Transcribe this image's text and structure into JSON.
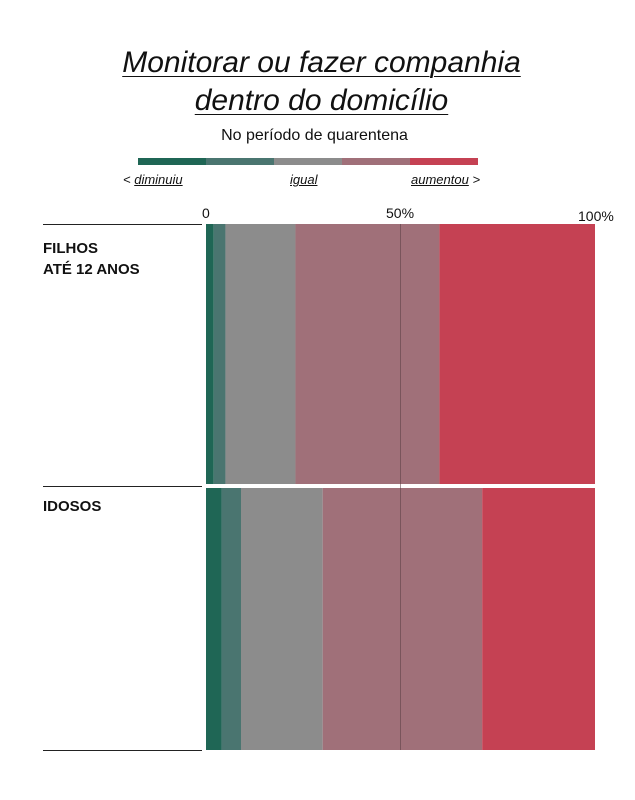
{
  "chart_data": {
    "type": "bar",
    "stacked": "100%",
    "orientation": "horizontal",
    "title": "Monitorar ou fazer companhia dentro do domicílio",
    "title_lines": [
      "Monitorar ou fazer companhia",
      "dentro do domicílio"
    ],
    "subtitle": "No período de quarentena",
    "legend": {
      "placement": "top",
      "left_label": "diminuiu",
      "middle_label": "igual",
      "right_label": "aumentou",
      "left_arrow": "<",
      "right_arrow": ">"
    },
    "x_ticks": [
      "0",
      "50%",
      "100%"
    ],
    "xlim": [
      0,
      100
    ],
    "categories": [
      "FILHOS\nATÉ 12 ANOS",
      "IDOSOS"
    ],
    "series": [
      {
        "key": "diminuiu_muito",
        "color": "#1f6655",
        "values": [
          2,
          4
        ]
      },
      {
        "key": "diminuiu_pouco",
        "color": "#4a7570",
        "values": [
          3,
          5
        ]
      },
      {
        "key": "igual",
        "color": "#8c8c8c",
        "values": [
          18,
          21
        ]
      },
      {
        "key": "aumentou_pouco",
        "color": "#a07079",
        "values": [
          37,
          41
        ]
      },
      {
        "key": "aumentou_muito",
        "color": "#c54153",
        "values": [
          40,
          29
        ]
      }
    ],
    "reference_line": 50,
    "grid": false
  }
}
